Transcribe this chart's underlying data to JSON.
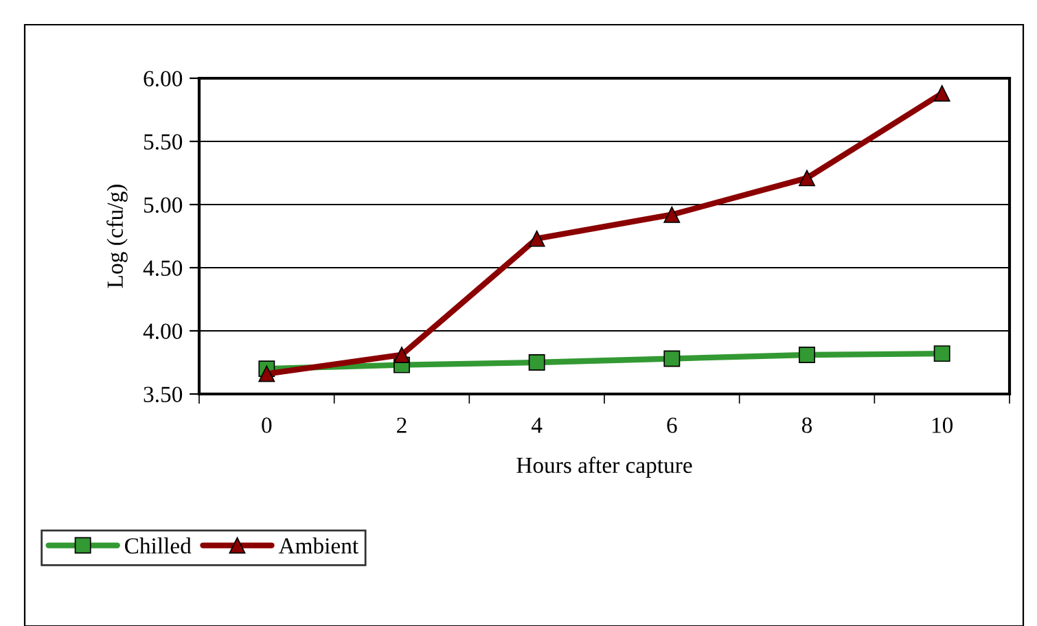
{
  "chart_data": {
    "type": "line",
    "xlabel": "Hours after capture",
    "ylabel": "Log (cfu/g)",
    "categories": [
      "0",
      "2",
      "4",
      "6",
      "8",
      "10"
    ],
    "series": [
      {
        "name": "Chilled",
        "color": "#339933",
        "marker": "square",
        "values": [
          3.7,
          3.73,
          3.75,
          3.78,
          3.81,
          3.82
        ]
      },
      {
        "name": "Ambient",
        "color": "#8b0000",
        "marker": "triangle",
        "values": [
          3.66,
          3.81,
          4.73,
          4.92,
          5.21,
          5.88
        ]
      }
    ],
    "ylim": [
      3.5,
      6.0
    ],
    "yticks": [
      {
        "value": 3.5,
        "label": "3.50"
      },
      {
        "value": 4.0,
        "label": "4.00"
      },
      {
        "value": 4.5,
        "label": "4.50"
      },
      {
        "value": 5.0,
        "label": "5.00"
      },
      {
        "value": 5.5,
        "label": "5.50"
      },
      {
        "value": 6.0,
        "label": "6.00"
      }
    ],
    "grid": "y",
    "legend": "bottom left",
    "line_style": "solid"
  }
}
